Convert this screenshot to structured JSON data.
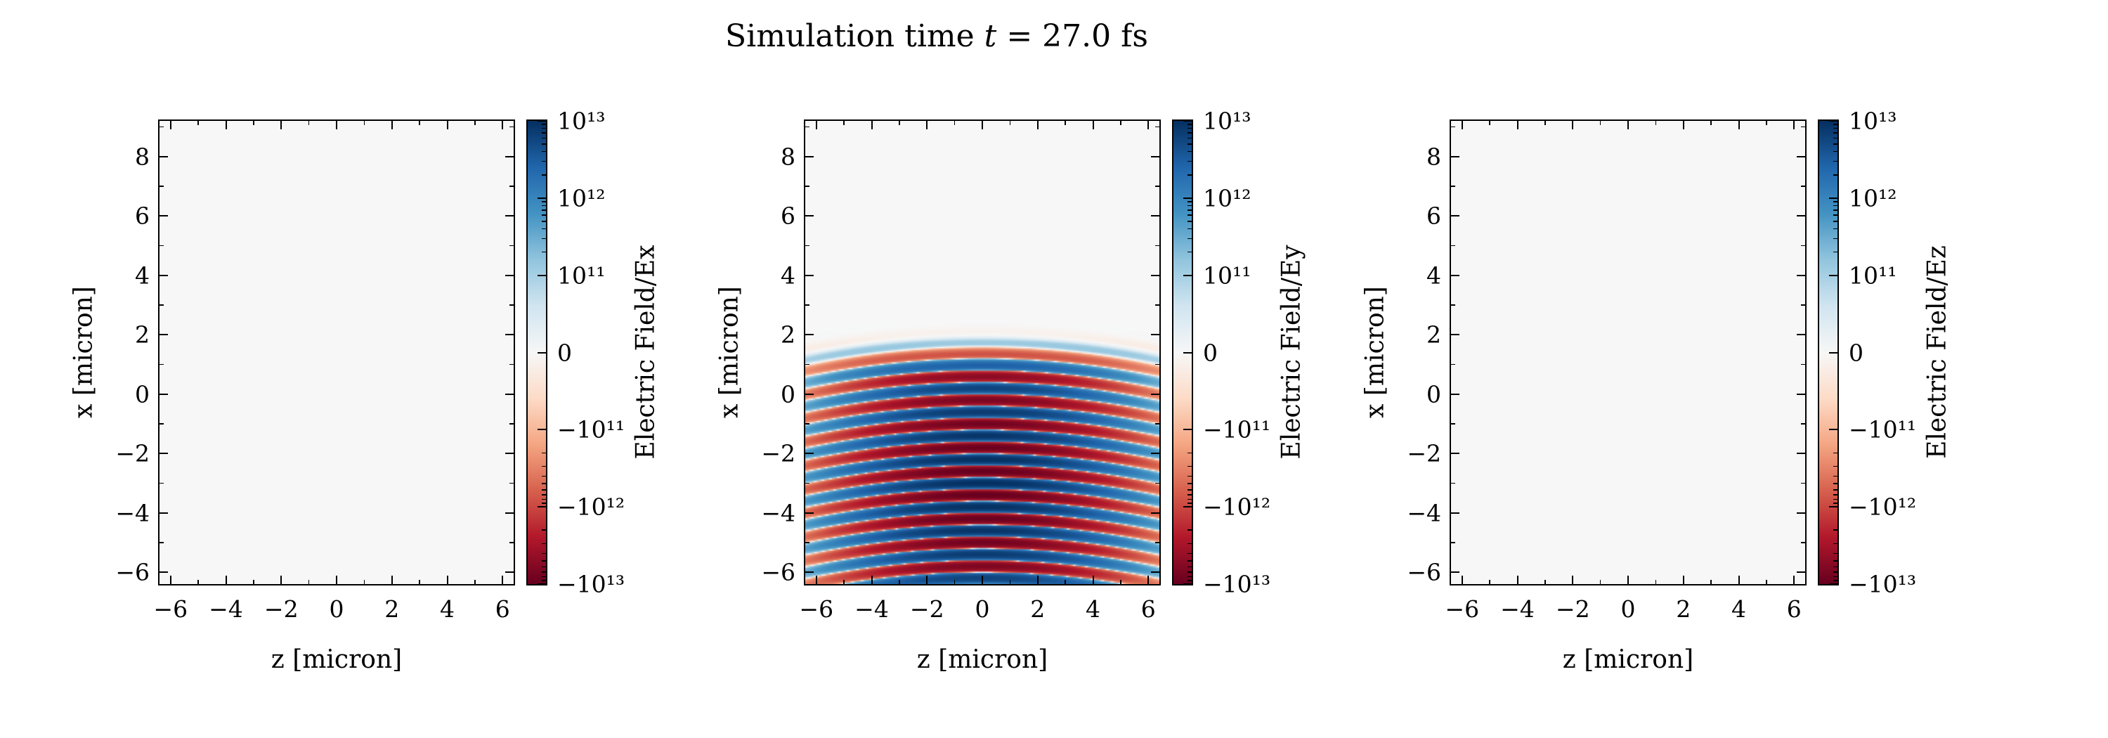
{
  "title": {
    "prefix": "Simulation time ",
    "variable": "t",
    "suffix": " = 27.0 fs"
  },
  "colors": {
    "background": "#ffffff",
    "frame": "#000000",
    "rdbu": [
      "#67001f",
      "#b2182b",
      "#d6604d",
      "#f4a582",
      "#fddbc7",
      "#f7f7f7",
      "#d1e5f0",
      "#92c5de",
      "#4393c3",
      "#2166ac",
      "#053061"
    ]
  },
  "chart_data": [
    {
      "type": "heatmap",
      "name": "Ex",
      "xlabel": "z [micron]",
      "ylabel": "x [micron]",
      "colorbar_label": "Electric Field/Ex",
      "xlim": [
        -6.4,
        6.4
      ],
      "ylim": [
        -6.4,
        9.2
      ],
      "xticks": [
        -6,
        -4,
        -2,
        0,
        2,
        4,
        6
      ],
      "yticks": [
        -6,
        -4,
        -2,
        0,
        2,
        4,
        6,
        8
      ],
      "colorbar": {
        "scale": "symlog",
        "linthresh": 100000000000.0,
        "vmin": -10000000000000.0,
        "vmax": 10000000000000.0,
        "colormap": "RdBu",
        "tick_labels": [
          "10¹³",
          "10¹²",
          "10¹¹",
          "0",
          "−10¹¹",
          "−10¹²",
          "−10¹³"
        ]
      },
      "field": {
        "kind": "uniform",
        "value": 0
      }
    },
    {
      "type": "heatmap",
      "name": "Ey",
      "xlabel": "z [micron]",
      "ylabel": "x [micron]",
      "colorbar_label": "Electric Field/Ey",
      "xlim": [
        -6.4,
        6.4
      ],
      "ylim": [
        -6.4,
        9.2
      ],
      "xticks": [
        -6,
        -4,
        -2,
        0,
        2,
        4,
        6
      ],
      "yticks": [
        -6,
        -4,
        -2,
        0,
        2,
        4,
        6,
        8
      ],
      "colorbar": {
        "scale": "symlog",
        "linthresh": 100000000000.0,
        "vmin": -10000000000000.0,
        "vmax": 10000000000000.0,
        "colormap": "RdBu",
        "tick_labels": [
          "10¹³",
          "10¹²",
          "10¹¹",
          "0",
          "−10¹¹",
          "−10¹²",
          "−10¹³"
        ]
      },
      "field": {
        "kind": "wave",
        "amplitude": 10000000000000.0,
        "wavelength": 0.8,
        "phase": 0,
        "phase_curvature": 0.015,
        "x_center": -3.0,
        "x_sigma": 4.5,
        "x_front": 0.5,
        "x_front_sigma": 0.7,
        "z_sigma": 3.8
      }
    },
    {
      "type": "heatmap",
      "name": "Ez",
      "xlabel": "z [micron]",
      "ylabel": "x [micron]",
      "colorbar_label": "Electric Field/Ez",
      "xlim": [
        -6.4,
        6.4
      ],
      "ylim": [
        -6.4,
        9.2
      ],
      "xticks": [
        -6,
        -4,
        -2,
        0,
        2,
        4,
        6
      ],
      "yticks": [
        -6,
        -4,
        -2,
        0,
        2,
        4,
        6,
        8
      ],
      "colorbar": {
        "scale": "symlog",
        "linthresh": 100000000000.0,
        "vmin": -10000000000000.0,
        "vmax": 10000000000000.0,
        "colormap": "RdBu",
        "tick_labels": [
          "10¹³",
          "10¹²",
          "10¹¹",
          "0",
          "−10¹¹",
          "−10¹²",
          "−10¹³"
        ]
      },
      "field": {
        "kind": "uniform",
        "value": 0
      }
    }
  ]
}
